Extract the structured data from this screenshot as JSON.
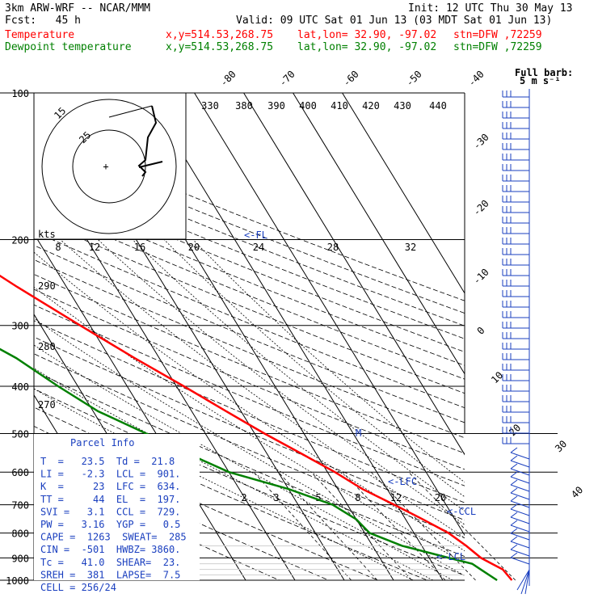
{
  "header": {
    "model": "3km ARW-WRF -- NCAR/MMM",
    "init": "Init: 12 UTC Thu 30 May 13",
    "fcst": "Fcst:   45 h",
    "valid": "Valid: 09 UTC Sat 01 Jun 13 (03 MDT Sat 01 Jun 13)",
    "temp_line": {
      "name": "Temperature",
      "xy": "x,y=514.53,268.75",
      "latlon": "lat,lon= 32.90, -97.02",
      "stn": "stn=DFW ,72259"
    },
    "dewp_line": {
      "name": "Dewpoint temperature",
      "xy": "x,y=514.53,268.75",
      "latlon": "lat,lon= 32.90, -97.02",
      "stn": "stn=DFW ,72259"
    }
  },
  "colors": {
    "temperature": "#ff0000",
    "dewpoint": "#008000",
    "barb": "#1a3fbf",
    "grid": "#000000"
  },
  "chart_data": {
    "type": "line",
    "title": "",
    "yscale": "log-pressure",
    "ylim": [
      1000,
      100
    ],
    "pressure_ticks": [
      "100",
      "200",
      "300",
      "400",
      "500",
      "600",
      "700",
      "800",
      "900",
      "1000"
    ],
    "isotherm_labels_top": [
      "-80",
      "-70",
      "-60",
      "-50",
      "-40"
    ],
    "isotherm_labels_right": [
      "-30",
      "-20",
      "-10",
      "0",
      "10",
      "20",
      "30",
      "40"
    ],
    "theta_e_labels": [
      "330",
      "380",
      "390",
      "400",
      "410",
      "420",
      "430",
      "440"
    ],
    "mixing_ratio_labels": [
      "2",
      "3",
      "5",
      "8",
      "12",
      "20"
    ],
    "dry_adiabat_labels": [
      "290",
      "280",
      "270"
    ],
    "hodograph": {
      "units": "kts",
      "ring_labels": [
        "15",
        "25"
      ],
      "axis_labels": [
        "8",
        "12",
        "16",
        "20",
        "24",
        "28",
        "32"
      ]
    },
    "series": [
      {
        "name": "Temperature",
        "points": [
          [
            1000,
            24
          ],
          [
            950,
            23.5
          ],
          [
            925,
            22
          ],
          [
            900,
            20.5
          ],
          [
            850,
            19
          ],
          [
            800,
            17
          ],
          [
            750,
            13.5
          ],
          [
            700,
            9.5
          ],
          [
            650,
            5
          ],
          [
            600,
            1.5
          ],
          [
            550,
            -3
          ],
          [
            500,
            -8
          ],
          [
            450,
            -13
          ],
          [
            400,
            -18.5
          ],
          [
            350,
            -25
          ],
          [
            300,
            -32
          ],
          [
            250,
            -40
          ],
          [
            200,
            -49
          ],
          [
            175,
            -53
          ],
          [
            150,
            -57
          ],
          [
            125,
            -60
          ],
          [
            110,
            -62
          ],
          [
            100,
            -64
          ]
        ]
      },
      {
        "name": "Dewpoint temperature",
        "points": [
          [
            1000,
            21
          ],
          [
            950,
            19
          ],
          [
            925,
            18
          ],
          [
            900,
            14
          ],
          [
            850,
            6
          ],
          [
            800,
            1
          ],
          [
            750,
            0
          ],
          [
            700,
            -3
          ],
          [
            650,
            -10
          ],
          [
            600,
            -20
          ],
          [
            550,
            -26
          ],
          [
            500,
            -32
          ],
          [
            450,
            -39
          ],
          [
            400,
            -44
          ],
          [
            350,
            -49
          ],
          [
            300,
            -57
          ],
          [
            250,
            -62
          ],
          [
            200,
            -68
          ],
          [
            150,
            -74
          ],
          [
            125,
            -79
          ],
          [
            110,
            -82
          ],
          [
            100,
            -84
          ]
        ]
      }
    ],
    "level_markers": [
      "<-FL",
      "<-LFC",
      "<-CCL",
      "<-LCL",
      "M"
    ],
    "barb_legend": "Full barb:\n5 m s⁻¹"
  },
  "parcel_info": {
    "title": "Parcel Info",
    "rows": [
      "T  =   23.5  Td =  21.8",
      "LI =   -2.3  LCL =  901.",
      "K  =     23  LFC =  634.",
      "TT =     44  EL  =  197.",
      "SVI =   3.1  CCL =  729.",
      "PW =   3.16  YGP =   0.5",
      "CAPE =  1263  SWEAT=  285",
      "CIN =  -501  HWBZ= 3860.",
      "Tc =   41.0  SHEAR=  23.",
      "SREH =  381  LAPSE=  7.5",
      "CELL = 256/24"
    ]
  }
}
